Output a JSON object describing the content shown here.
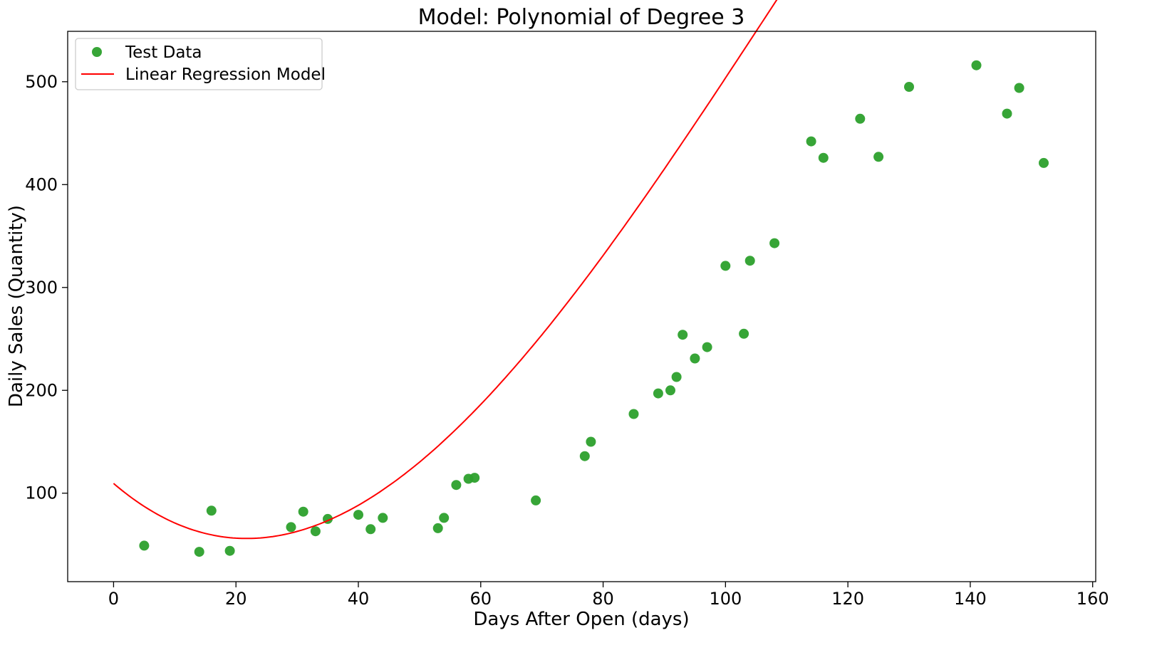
{
  "chart_data": {
    "type": "scatter",
    "title": "Model: Polynomial of Degree 3",
    "xlabel": "Days After Open (days)",
    "ylabel": "Daily Sales (Quantity)",
    "xlim": [
      -7.5,
      160.5
    ],
    "ylim": [
      14,
      549
    ],
    "xticks": [
      0,
      20,
      40,
      60,
      80,
      100,
      120,
      140,
      160
    ],
    "yticks": [
      100,
      200,
      300,
      400,
      500
    ],
    "grid": false,
    "legend_position": "top-left",
    "series": [
      {
        "name": "Test Data",
        "kind": "scatter",
        "color": "#2ca02c",
        "points": [
          [
            5,
            49
          ],
          [
            14,
            43
          ],
          [
            16,
            83
          ],
          [
            19,
            44
          ],
          [
            29,
            67
          ],
          [
            31,
            82
          ],
          [
            33,
            63
          ],
          [
            35,
            75
          ],
          [
            40,
            79
          ],
          [
            42,
            65
          ],
          [
            44,
            76
          ],
          [
            53,
            66
          ],
          [
            54,
            76
          ],
          [
            56,
            108
          ],
          [
            58,
            114
          ],
          [
            59,
            115
          ],
          [
            69,
            93
          ],
          [
            77,
            136
          ],
          [
            78,
            150
          ],
          [
            85,
            177
          ],
          [
            89,
            197
          ],
          [
            91,
            200
          ],
          [
            92,
            213
          ],
          [
            93,
            254
          ],
          [
            95,
            231
          ],
          [
            97,
            242
          ],
          [
            100,
            321
          ],
          [
            103,
            255
          ],
          [
            104,
            326
          ],
          [
            108,
            343
          ],
          [
            114,
            442
          ],
          [
            116,
            426
          ],
          [
            122,
            464
          ],
          [
            125,
            427
          ],
          [
            130,
            495
          ],
          [
            141,
            516
          ],
          [
            146,
            469
          ],
          [
            148,
            494
          ],
          [
            152,
            421
          ]
        ]
      },
      {
        "name": "Linear Regression Model",
        "kind": "line",
        "color": "#ff0000",
        "x_range": [
          0,
          153
        ],
        "polynomial_coefficients": [
          109.5,
          -5.108,
          0.1304,
          -0.000399
        ]
      }
    ]
  }
}
